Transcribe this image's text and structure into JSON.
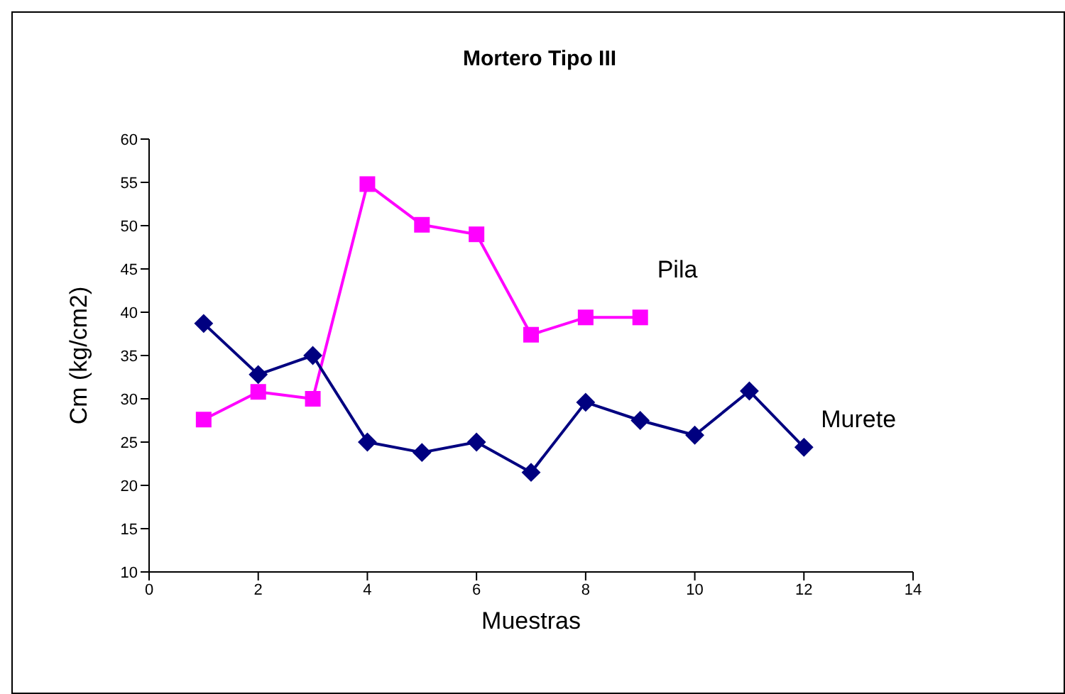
{
  "chart_data": {
    "type": "line",
    "title": "Mortero Tipo III",
    "xlabel": "Muestras",
    "ylabel": "Cm (kg/cm2)",
    "xlim": [
      0,
      14
    ],
    "xticks": [
      0,
      2,
      4,
      6,
      8,
      10,
      12,
      14
    ],
    "ylim": [
      10,
      60
    ],
    "yticks": [
      10,
      15,
      20,
      25,
      30,
      35,
      40,
      45,
      50,
      55,
      60
    ],
    "grid": false,
    "legend": false,
    "series": [
      {
        "name": "Pila",
        "color": "#ff00ff",
        "marker": "square",
        "x": [
          1,
          2,
          3,
          4,
          5,
          6,
          7,
          8,
          9
        ],
        "values": [
          27.6,
          30.8,
          30.0,
          54.8,
          50.1,
          49.0,
          37.4,
          39.4,
          39.4
        ]
      },
      {
        "name": "Murete",
        "color": "#000080",
        "marker": "diamond",
        "x": [
          1,
          2,
          3,
          4,
          5,
          6,
          7,
          8,
          9,
          10,
          11,
          12
        ],
        "values": [
          38.7,
          32.8,
          35.0,
          25.0,
          23.8,
          25.0,
          21.5,
          29.6,
          27.5,
          25.8,
          30.9,
          24.4
        ]
      }
    ]
  }
}
